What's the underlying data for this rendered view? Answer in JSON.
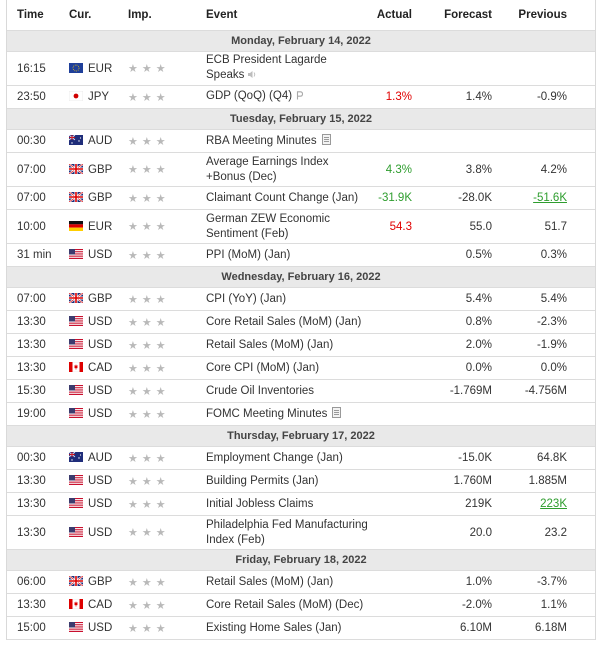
{
  "header": {
    "time": "Time",
    "cur": "Cur.",
    "imp": "Imp.",
    "event": "Event",
    "actual": "Actual",
    "forecast": "Forecast",
    "previous": "Previous"
  },
  "colors": {
    "positive": "#2e9d2e",
    "negative": "#e00000",
    "star": "#b9b9b9",
    "day_bg": "#e9e9e9"
  },
  "sections": [
    {
      "day": "Monday, February 14, 2022",
      "events": [
        {
          "time": "16:15",
          "flag": "flag-eu-icon",
          "cur": "EUR",
          "event": "ECB President Lagarde Speaks",
          "icon": "speaker-icon",
          "actual": "",
          "forecast": "",
          "previous": "",
          "tall": true
        },
        {
          "time": "23:50",
          "flag": "flag-jp-icon",
          "cur": "JPY",
          "event": "GDP (QoQ) (Q4)",
          "icon": "preliminary-icon",
          "actual": "1.3%",
          "actual_color": "negative",
          "forecast": "1.4%",
          "previous": "-0.9%"
        }
      ]
    },
    {
      "day": "Tuesday, February 15, 2022",
      "events": [
        {
          "time": "00:30",
          "flag": "flag-au-icon",
          "cur": "AUD",
          "event": "RBA Meeting Minutes",
          "icon": "document-icon",
          "actual": "",
          "forecast": "",
          "previous": ""
        },
        {
          "time": "07:00",
          "flag": "flag-gb-icon",
          "cur": "GBP",
          "event": "Average Earnings Index +Bonus (Dec)",
          "actual": "4.3%",
          "actual_color": "positive",
          "forecast": "3.8%",
          "previous": "4.2%",
          "tall": true
        },
        {
          "time": "07:00",
          "flag": "flag-gb-icon",
          "cur": "GBP",
          "event": "Claimant Count Change (Jan)",
          "actual": "-31.9K",
          "actual_color": "positive",
          "forecast": "-28.0K",
          "previous": "-51.6K",
          "previous_color": "positive",
          "previous_underline": true
        },
        {
          "time": "10:00",
          "flag": "flag-de-icon",
          "cur": "EUR",
          "event": "German ZEW Economic Sentiment (Feb)",
          "actual": "54.3",
          "actual_color": "negative",
          "forecast": "55.0",
          "previous": "51.7",
          "tall": true
        },
        {
          "time": "31 min",
          "flag": "flag-us-icon",
          "cur": "USD",
          "event": "PPI (MoM) (Jan)",
          "actual": "",
          "forecast": "0.5%",
          "previous": "0.3%"
        }
      ]
    },
    {
      "day": "Wednesday, February 16, 2022",
      "events": [
        {
          "time": "07:00",
          "flag": "flag-gb-icon",
          "cur": "GBP",
          "event": "CPI (YoY) (Jan)",
          "actual": "",
          "forecast": "5.4%",
          "previous": "5.4%"
        },
        {
          "time": "13:30",
          "flag": "flag-us-icon",
          "cur": "USD",
          "event": "Core Retail Sales (MoM) (Jan)",
          "actual": "",
          "forecast": "0.8%",
          "previous": "-2.3%"
        },
        {
          "time": "13:30",
          "flag": "flag-us-icon",
          "cur": "USD",
          "event": "Retail Sales (MoM) (Jan)",
          "actual": "",
          "forecast": "2.0%",
          "previous": "-1.9%"
        },
        {
          "time": "13:30",
          "flag": "flag-ca-icon",
          "cur": "CAD",
          "event": "Core CPI (MoM) (Jan)",
          "actual": "",
          "forecast": "0.0%",
          "previous": "0.0%"
        },
        {
          "time": "15:30",
          "flag": "flag-us-icon",
          "cur": "USD",
          "event": "Crude Oil Inventories",
          "actual": "",
          "forecast": "-1.769M",
          "previous": "-4.756M"
        },
        {
          "time": "19:00",
          "flag": "flag-us-icon",
          "cur": "USD",
          "event": "FOMC Meeting Minutes",
          "icon": "document-icon",
          "actual": "",
          "forecast": "",
          "previous": ""
        }
      ]
    },
    {
      "day": "Thursday, February 17, 2022",
      "events": [
        {
          "time": "00:30",
          "flag": "flag-au-icon",
          "cur": "AUD",
          "event": "Employment Change (Jan)",
          "actual": "",
          "forecast": "-15.0K",
          "previous": "64.8K"
        },
        {
          "time": "13:30",
          "flag": "flag-us-icon",
          "cur": "USD",
          "event": "Building Permits (Jan)",
          "actual": "",
          "forecast": "1.760M",
          "previous": "1.885M"
        },
        {
          "time": "13:30",
          "flag": "flag-us-icon",
          "cur": "USD",
          "event": "Initial Jobless Claims",
          "actual": "",
          "forecast": "219K",
          "previous": "223K",
          "previous_color": "positive",
          "previous_underline": true
        },
        {
          "time": "13:30",
          "flag": "flag-us-icon",
          "cur": "USD",
          "event": "Philadelphia Fed Manufacturing Index (Feb)",
          "actual": "",
          "forecast": "20.0",
          "previous": "23.2",
          "tall": true
        }
      ]
    },
    {
      "day": "Friday, February 18, 2022",
      "events": [
        {
          "time": "06:00",
          "flag": "flag-gb-icon",
          "cur": "GBP",
          "event": "Retail Sales (MoM) (Jan)",
          "actual": "",
          "forecast": "1.0%",
          "previous": "-3.7%"
        },
        {
          "time": "13:30",
          "flag": "flag-ca-icon",
          "cur": "CAD",
          "event": "Core Retail Sales (MoM) (Dec)",
          "actual": "",
          "forecast": "-2.0%",
          "previous": "1.1%"
        },
        {
          "time": "15:00",
          "flag": "flag-us-icon",
          "cur": "USD",
          "event": "Existing Home Sales (Jan)",
          "actual": "",
          "forecast": "6.10M",
          "previous": "6.18M"
        }
      ]
    }
  ]
}
